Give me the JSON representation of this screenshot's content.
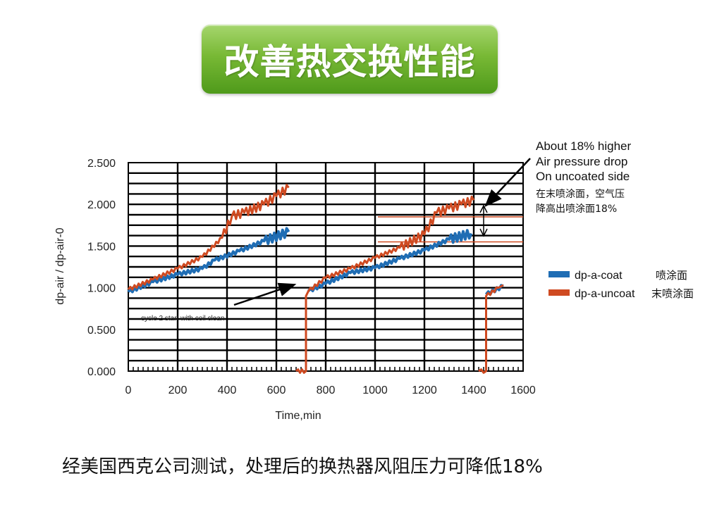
{
  "banner": {
    "title": "改善热交换性能"
  },
  "caption": "经美国西克公司测试，处理后的换热器风阻压力可降低18%",
  "colors": {
    "coat": "#1f6db4",
    "uncoat": "#cf4a21",
    "banner": "#78b935",
    "grid": "#000000",
    "arrow": "#000000"
  },
  "chart_data": {
    "type": "line",
    "xlabel": "Time,min",
    "ylabel": "dp-air / dp-air-0",
    "xlim": [
      0,
      1600
    ],
    "ylim": [
      0,
      2.5
    ],
    "x_ticks": [
      "0",
      "200",
      "400",
      "600",
      "800",
      "1000",
      "1200",
      "1400",
      "1600"
    ],
    "y_ticks": [
      "0.000",
      "0.500",
      "1.000",
      "1.500",
      "2.000",
      "2.500"
    ],
    "grid": true,
    "legend_position": "right",
    "series": [
      {
        "name": "dp-a-coat",
        "name_cn": "喷涂面",
        "segments": [
          [
            [
              0,
              0.95
            ],
            [
              100,
              1.07
            ],
            [
              200,
              1.16
            ],
            [
              300,
              1.23
            ],
            [
              350,
              1.33
            ],
            [
              450,
              1.44
            ],
            [
              550,
              1.56
            ],
            [
              650,
              1.67
            ]
          ],
          [
            [
              730,
              0.96
            ],
            [
              800,
              1.05
            ],
            [
              900,
              1.18
            ],
            [
              1000,
              1.24
            ],
            [
              1100,
              1.35
            ],
            [
              1200,
              1.45
            ],
            [
              1300,
              1.58
            ],
            [
              1390,
              1.65
            ]
          ],
          [
            [
              1450,
              0.92
            ],
            [
              1520,
              1.02
            ]
          ]
        ]
      },
      {
        "name": "dp-a-uncoat",
        "name_cn": "末喷涂面",
        "segments": [
          [
            [
              0,
              0.98
            ],
            [
              100,
              1.1
            ],
            [
              200,
              1.23
            ],
            [
              300,
              1.37
            ],
            [
              380,
              1.6
            ],
            [
              420,
              1.86
            ],
            [
              470,
              1.9
            ],
            [
              550,
              2.0
            ],
            [
              600,
              2.1
            ],
            [
              650,
              2.2
            ]
          ],
          [
            [
              680,
              0.0
            ],
            [
              720,
              0.0
            ],
            [
              720,
              0.9
            ],
            [
              730,
              0.96
            ],
            [
              800,
              1.12
            ],
            [
              900,
              1.23
            ],
            [
              1000,
              1.36
            ],
            [
              1100,
              1.48
            ],
            [
              1200,
              1.64
            ],
            [
              1250,
              1.9
            ],
            [
              1300,
              1.95
            ],
            [
              1350,
              2.0
            ],
            [
              1400,
              2.05
            ]
          ],
          [
            [
              1420,
              0.0
            ],
            [
              1450,
              0.0
            ],
            [
              1450,
              0.9
            ],
            [
              1500,
              1.0
            ],
            [
              1520,
              1.03
            ]
          ]
        ]
      }
    ],
    "reference_lines": [
      1.85,
      1.55
    ],
    "annotations": {
      "cycle": "cycle 2 start with coil clean",
      "right_en": [
        "About 18% higher",
        "Air pressure drop",
        "On uncoated side"
      ],
      "right_cn": [
        "在末喷涂面，空气压",
        "降高出喷涂面18%"
      ]
    }
  }
}
